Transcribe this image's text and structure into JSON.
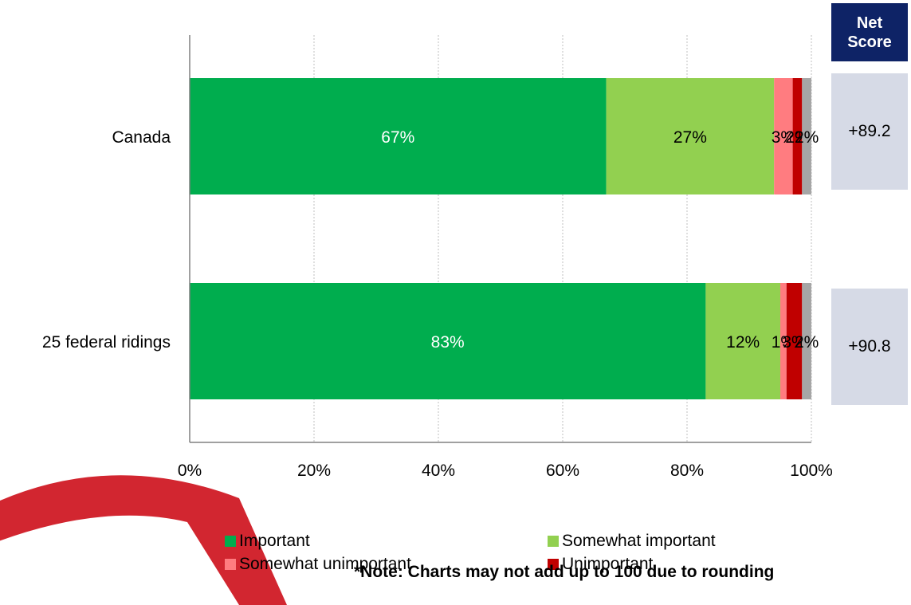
{
  "chart_data": {
    "type": "bar",
    "orientation": "horizontal",
    "stacked": true,
    "categories": [
      "Canada",
      "25 federal ridings"
    ],
    "series": [
      {
        "name": "Important",
        "color": "#00ad4e",
        "values": [
          67,
          83
        ],
        "labels": [
          "67%",
          "83%"
        ],
        "label_color": "#ffffff"
      },
      {
        "name": "Somewhat important",
        "color": "#92d050",
        "values": [
          27,
          12
        ],
        "labels": [
          "27%",
          "12%"
        ],
        "label_color": "#000000"
      },
      {
        "name": "Somewhat unimportant",
        "color": "#ff7c80",
        "values": [
          3,
          1
        ],
        "labels": [
          "3%",
          "1%"
        ],
        "label_color": "#000000"
      },
      {
        "name": "Unimportant",
        "color": "#c00000",
        "values": [
          1.5,
          2.5
        ],
        "labels": [
          "2%",
          "3%"
        ],
        "label_color": "#000000"
      },
      {
        "color": "#a6a6a6",
        "values": [
          1.5,
          1.5
        ],
        "labels": [
          "2%",
          "2%"
        ],
        "label_color": "#000000"
      }
    ],
    "xlim": [
      0,
      100
    ],
    "x_ticks": [
      "0%",
      "20%",
      "40%",
      "60%",
      "80%",
      "100%"
    ],
    "grid": true,
    "legend_position": "bottom"
  },
  "net_score": {
    "header_line1": "Net",
    "header_line2": "Score",
    "values": [
      "+89.2",
      "+90.8"
    ]
  },
  "legend": {
    "important": "Important",
    "somewhat_important": "Somewhat important",
    "somewhat_unimportant": "Somewhat unimportant",
    "unimportant": "Unimportant"
  },
  "note": "*Note: Charts may not add up to 100 due to rounding",
  "colors": {
    "important": "#00ad4e",
    "somewhat_important": "#92d050",
    "somewhat_unimportant": "#ff7c80",
    "unimportant": "#c00000",
    "no_answer": "#a6a6a6",
    "net_header_bg": "#0e2366",
    "net_box_bg": "#d6dae6",
    "decoration": "#d22630"
  }
}
